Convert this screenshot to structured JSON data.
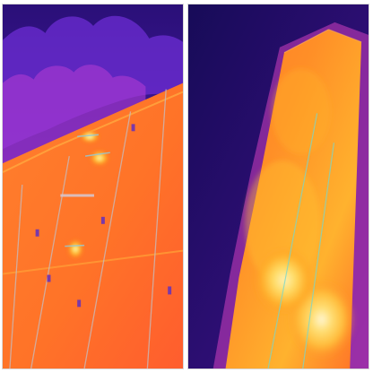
{
  "image": {
    "panels": [
      {
        "id": "left",
        "palette": "thermal",
        "subject": "solar-panel-array"
      },
      {
        "id": "right",
        "palette": "thermal",
        "subject": "solar-panel-closeup"
      }
    ],
    "colors": {
      "background_dark": "#1b0b5d",
      "sky_violet": "#6c2bd6",
      "magenta": "#c13dc9",
      "orange": "#ff7a1f",
      "hot_orange": "#ff9a20",
      "yellow": "#ffd43b",
      "white_hot": "#fff8c7",
      "line_gray": "#b6b0b7",
      "cool_purple": "#6e3bb0",
      "teal_line": "#7fd7d1"
    }
  }
}
